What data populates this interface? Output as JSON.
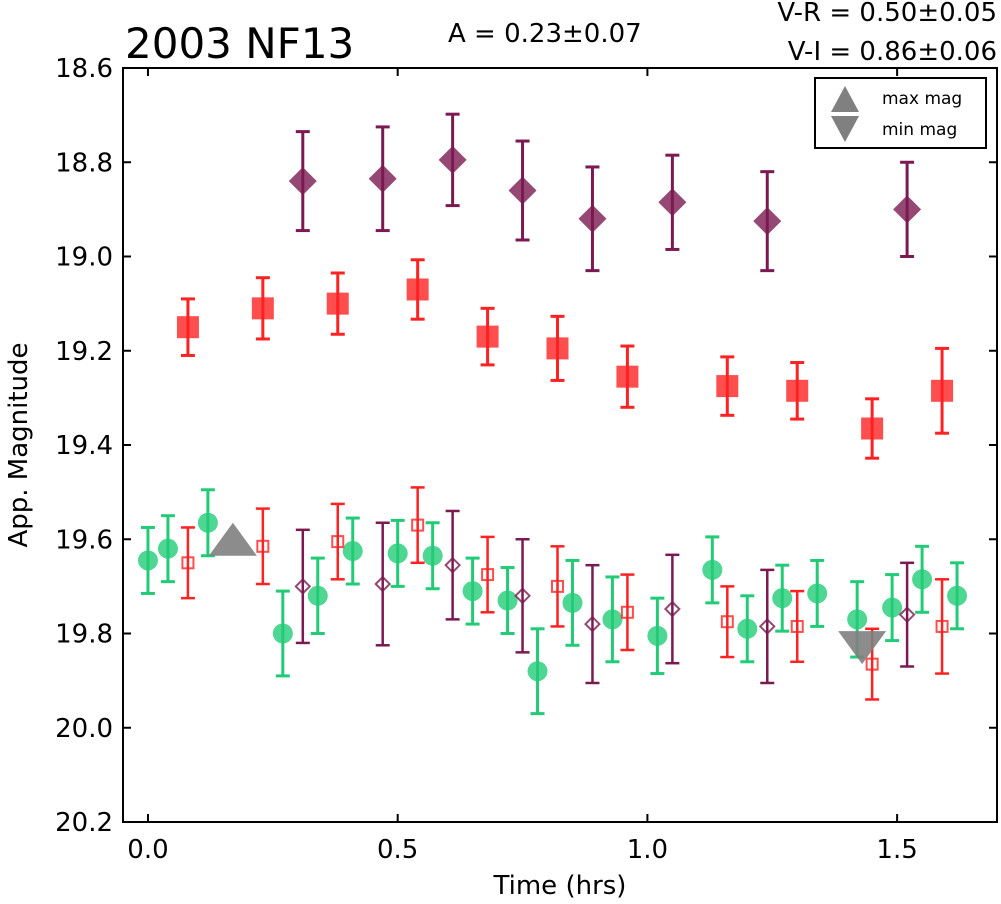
{
  "chart_data": {
    "type": "scatter",
    "title": "2003 NF13",
    "amplitude_label": "A  = 0.23±0.07",
    "color_indices": [
      "V-R = 0.50±0.05",
      "V-I  = 0.86±0.06"
    ],
    "xlabel": "Time (hrs)",
    "ylabel": "App. Magnitude",
    "xlim": [
      -0.05,
      1.7
    ],
    "ylim": [
      20.2,
      18.6
    ],
    "y_inverted": true,
    "grid": false,
    "legend_placement": "top-right",
    "x_ticks": [
      "0.0",
      "0.5",
      "1.0",
      "1.5"
    ],
    "y_ticks": [
      "18.6",
      "18.8",
      "19.0",
      "19.2",
      "19.4",
      "19.6",
      "19.8",
      "20.0",
      "20.2"
    ],
    "colors": {
      "green": "#22cc77",
      "red": "#ff2222",
      "purple": "#7a1a50",
      "marker_gray": "#808080"
    },
    "legend": [
      {
        "label": "max mag",
        "marker": "triangle-up"
      },
      {
        "label": "min mag",
        "marker": "triangle-down"
      }
    ],
    "series": [
      {
        "marker": "circle",
        "filled": true,
        "color": "#22cc77",
        "x": [
          0.0,
          0.04,
          0.12,
          0.27,
          0.34,
          0.41,
          0.5,
          0.57,
          0.65,
          0.72,
          0.78,
          0.85,
          0.93,
          1.02,
          1.13,
          1.2,
          1.27,
          1.34,
          1.42,
          1.49,
          1.55,
          1.62
        ],
        "y": [
          19.645,
          19.62,
          19.565,
          19.8,
          19.72,
          19.625,
          19.63,
          19.635,
          19.71,
          19.73,
          19.88,
          19.735,
          19.77,
          19.805,
          19.665,
          19.79,
          19.725,
          19.715,
          19.77,
          19.745,
          19.685,
          19.72
        ],
        "err": [
          0.07,
          0.07,
          0.07,
          0.09,
          0.08,
          0.07,
          0.07,
          0.07,
          0.07,
          0.07,
          0.09,
          0.09,
          0.09,
          0.08,
          0.07,
          0.07,
          0.07,
          0.07,
          0.08,
          0.07,
          0.07,
          0.07
        ]
      },
      {
        "marker": "square",
        "filled": true,
        "color": "#ff2222",
        "x": [
          0.08,
          0.23,
          0.38,
          0.54,
          0.68,
          0.82,
          0.96,
          1.16,
          1.3,
          1.45,
          1.59
        ],
        "y": [
          19.15,
          19.11,
          19.1,
          19.07,
          19.17,
          19.195,
          19.255,
          19.275,
          19.285,
          19.365,
          19.285
        ],
        "err": [
          0.06,
          0.065,
          0.065,
          0.063,
          0.06,
          0.068,
          0.065,
          0.062,
          0.06,
          0.063,
          0.09
        ]
      },
      {
        "marker": "diamond",
        "filled": true,
        "color": "#7a1a50",
        "x": [
          0.31,
          0.47,
          0.61,
          0.75,
          0.89,
          1.05,
          1.24,
          1.52
        ],
        "y": [
          18.84,
          18.835,
          18.795,
          18.86,
          18.92,
          18.885,
          18.925,
          18.9
        ],
        "err": [
          0.105,
          0.11,
          0.097,
          0.105,
          0.11,
          0.1,
          0.105,
          0.1
        ]
      },
      {
        "marker": "square",
        "filled": false,
        "color": "#ff2222",
        "x": [
          0.08,
          0.23,
          0.38,
          0.54,
          0.68,
          0.82,
          0.96,
          1.16,
          1.3,
          1.45,
          1.59
        ],
        "y": [
          19.65,
          19.615,
          19.605,
          19.57,
          19.675,
          19.7,
          19.755,
          19.775,
          19.785,
          19.865,
          19.785
        ],
        "err": [
          0.075,
          0.08,
          0.08,
          0.08,
          0.08,
          0.085,
          0.08,
          0.075,
          0.075,
          0.075,
          0.1
        ]
      },
      {
        "marker": "diamond",
        "filled": false,
        "color": "#7a1a50",
        "x": [
          0.31,
          0.47,
          0.61,
          0.75,
          0.89,
          1.05,
          1.24,
          1.52
        ],
        "y": [
          19.7,
          19.695,
          19.655,
          19.72,
          19.78,
          19.748,
          19.785,
          19.76
        ],
        "err": [
          0.12,
          0.13,
          0.115,
          0.12,
          0.125,
          0.115,
          0.12,
          0.11
        ]
      }
    ],
    "markers": [
      {
        "label": "max mag",
        "shape": "triangle-up",
        "x": 0.17,
        "y": 19.6
      },
      {
        "label": "min mag",
        "shape": "triangle-down",
        "x": 1.43,
        "y": 19.83
      }
    ]
  }
}
